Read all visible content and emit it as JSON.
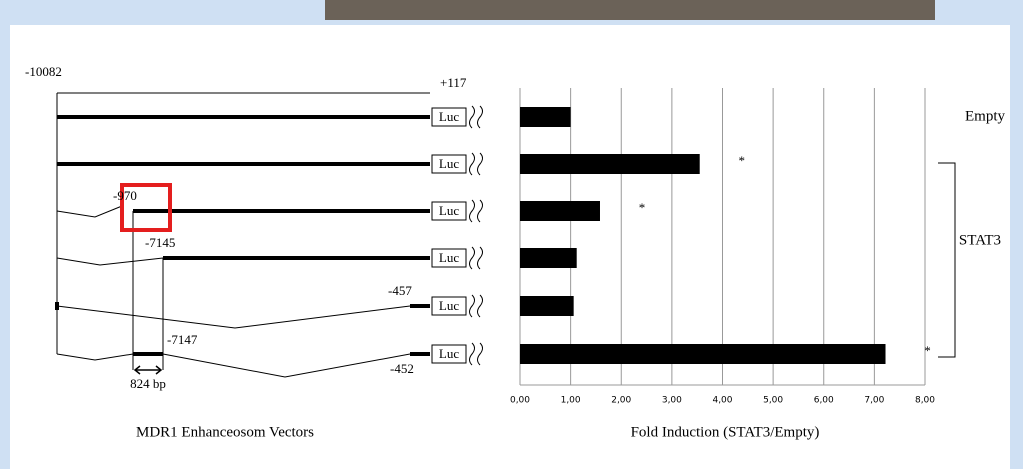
{
  "diagram": {
    "title": "MDR1 Enhanceosom Vectors",
    "start": "-10082",
    "end": "+117",
    "reporter": "Luc",
    "site_labels": [
      "-970",
      "-7145",
      "-457",
      "-7147",
      "-452"
    ],
    "length": "824 bp"
  },
  "chart_data": {
    "type": "barh",
    "categories": [
      null,
      null,
      null,
      null,
      null,
      null
    ],
    "values": [
      1.0,
      3.55,
      1.58,
      1.12,
      1.06,
      7.22
    ],
    "color": "#000000",
    "xlabel": "Fold Induction (STAT3/Empty)",
    "xlim": [
      0,
      8
    ],
    "xticks": [
      {
        "value": 0,
        "label": "0,00"
      },
      {
        "value": 1,
        "label": "1,00"
      },
      {
        "value": 2,
        "label": "2,00"
      },
      {
        "value": 3,
        "label": "3,00"
      },
      {
        "value": 4,
        "label": "4,00"
      },
      {
        "value": 5,
        "label": "5,00"
      },
      {
        "value": 6,
        "label": "6,00"
      },
      {
        "value": 7,
        "label": "7,00"
      },
      {
        "value": 8,
        "label": "8,00"
      }
    ],
    "grid": true,
    "annotations": [
      {
        "text": "*",
        "index": 1
      },
      {
        "text": "*",
        "index": 2
      },
      {
        "text": "*",
        "index": 5
      }
    ],
    "groups": [
      "Empty",
      "STAT3"
    ]
  }
}
